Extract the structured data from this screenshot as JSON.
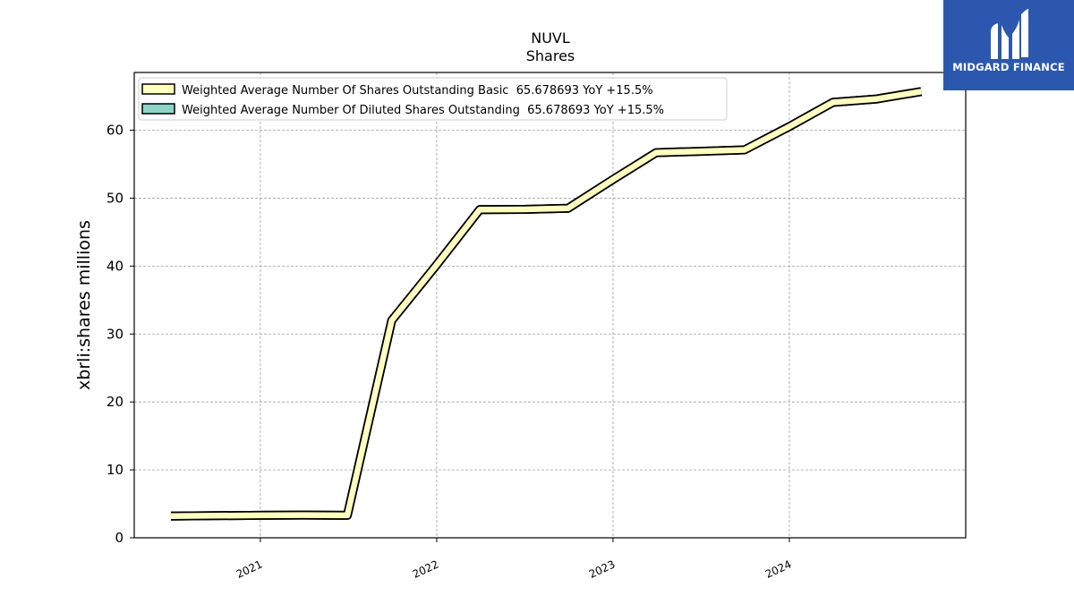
{
  "chart_data": {
    "type": "line",
    "title": "NUVL",
    "subtitle": "Shares",
    "xlabel": "",
    "ylabel": "xbrli:shares millions",
    "xlim": [
      "2020-04-15",
      "2024-12-31"
    ],
    "ylim": [
      0,
      68.5
    ],
    "yticks": [
      0,
      10,
      20,
      30,
      40,
      50,
      60
    ],
    "xticks": [
      {
        "date": "2021-01-01",
        "label": "2021"
      },
      {
        "date": "2022-01-01",
        "label": "2022"
      },
      {
        "date": "2023-01-01",
        "label": "2023"
      },
      {
        "date": "2024-01-01",
        "label": "2024"
      }
    ],
    "grid": true,
    "legend_position": "upper-left",
    "series": [
      {
        "name": "Weighted Average Number Of Shares Outstanding Basic  65.678693 YoY +15.5%",
        "color": "#ffffbf",
        "points": [
          [
            "2020-06-30",
            3.2
          ],
          [
            "2020-09-30",
            3.25
          ],
          [
            "2020-12-31",
            3.3
          ],
          [
            "2021-03-31",
            3.35
          ],
          [
            "2021-06-30",
            3.3
          ],
          [
            "2021-09-30",
            32.0
          ],
          [
            "2021-12-31",
            40.1
          ],
          [
            "2022-03-31",
            48.3
          ],
          [
            "2022-06-30",
            48.35
          ],
          [
            "2022-09-30",
            48.5
          ],
          [
            "2022-12-31",
            52.7
          ],
          [
            "2023-03-31",
            56.7
          ],
          [
            "2023-06-30",
            56.9
          ],
          [
            "2023-09-30",
            57.1
          ],
          [
            "2023-12-31",
            60.5
          ],
          [
            "2024-03-31",
            64.1
          ],
          [
            "2024-06-30",
            64.6
          ],
          [
            "2024-09-30",
            65.7
          ]
        ]
      },
      {
        "name": "Weighted Average Number Of Diluted Shares Outstanding  65.678693 YoY +15.5%",
        "color": "#8dd3c7",
        "points": [
          [
            "2020-06-30",
            3.2
          ],
          [
            "2020-09-30",
            3.25
          ],
          [
            "2020-12-31",
            3.3
          ],
          [
            "2021-03-31",
            3.35
          ],
          [
            "2021-06-30",
            3.3
          ],
          [
            "2021-09-30",
            32.0
          ],
          [
            "2021-12-31",
            40.1
          ],
          [
            "2022-03-31",
            48.3
          ],
          [
            "2022-06-30",
            48.35
          ],
          [
            "2022-09-30",
            48.5
          ],
          [
            "2022-12-31",
            52.7
          ],
          [
            "2023-03-31",
            56.7
          ],
          [
            "2023-06-30",
            56.9
          ],
          [
            "2023-09-30",
            57.1
          ],
          [
            "2023-12-31",
            60.5
          ],
          [
            "2024-03-31",
            64.1
          ],
          [
            "2024-06-30",
            64.6
          ],
          [
            "2024-09-30",
            65.7
          ]
        ]
      }
    ]
  },
  "logo": {
    "text": "MIDGARD FINANCE",
    "background": "#2b58ae"
  }
}
